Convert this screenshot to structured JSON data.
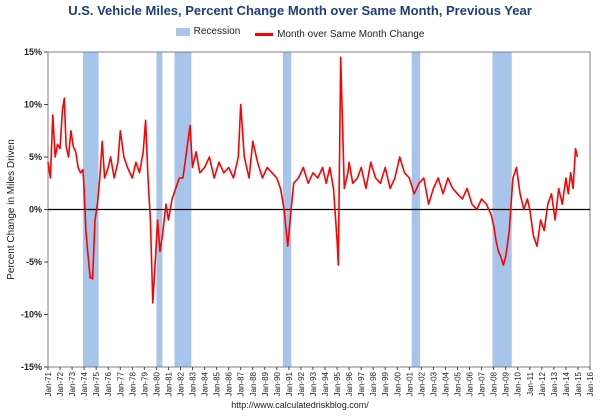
{
  "chart_data": {
    "type": "line",
    "title": "U.S. Vehicle Miles,  Percent Change Month over Same Month, Previous Year",
    "ylabel": "Percent Change in Miles Driven",
    "xlabel": "",
    "ylim": [
      -15,
      15
    ],
    "y_ticks": [
      "15%",
      "10%",
      "5%",
      "0%",
      "-5%",
      "-10%",
      "-15%"
    ],
    "y_tick_values": [
      15,
      10,
      5,
      0,
      -5,
      -10,
      -15
    ],
    "x_tick_labels": [
      "Jan-71",
      "Jan-72",
      "Jan-73",
      "Jan-74",
      "Jan-75",
      "Jan-76",
      "Jan-77",
      "Jan-78",
      "Jan-79",
      "Jan-80",
      "Jan-81",
      "Jan-82",
      "Jan-83",
      "Jan-84",
      "Jan-85",
      "Jan-86",
      "Jan-87",
      "Jan-88",
      "Jan-89",
      "Jan-90",
      "Jan-91",
      "Jan-92",
      "Jan-93",
      "Jan-94",
      "Jan-95",
      "Jan-96",
      "Jan-97",
      "Jan-98",
      "Jan-99",
      "Jan-00",
      "Jan-01",
      "Jan-02",
      "Jan-03",
      "Jan-04",
      "Jan-05",
      "Jan-06",
      "Jan-07",
      "Jan-08",
      "Jan-09",
      "Jan-10",
      "Jan-11",
      "Jan-12",
      "Jan-13",
      "Jan-14",
      "Jan-15",
      "Jan-16"
    ],
    "xlim": [
      1971.0,
      2016.0
    ],
    "legend": [
      "Recession",
      "Month over Same Month Change"
    ],
    "legend_position": "top-center",
    "grid": false,
    "recessions": [
      [
        1973.9,
        1975.2
      ],
      [
        1980.0,
        1980.5
      ],
      [
        1981.5,
        1982.9
      ],
      [
        1990.5,
        1991.2
      ],
      [
        2001.2,
        2001.9
      ],
      [
        2007.9,
        2009.5
      ]
    ],
    "series": [
      {
        "name": "Month over Same Month Change",
        "color": "#ff0000",
        "x": [
          1971.0,
          1971.2,
          1971.4,
          1971.6,
          1971.8,
          1972.0,
          1972.2,
          1972.35,
          1972.5,
          1972.7,
          1972.9,
          1973.1,
          1973.3,
          1973.5,
          1973.7,
          1973.9,
          1974.0,
          1974.15,
          1974.3,
          1974.5,
          1974.7,
          1974.9,
          1975.1,
          1975.3,
          1975.5,
          1975.7,
          1976.0,
          1976.2,
          1976.5,
          1976.8,
          1977.0,
          1977.3,
          1977.6,
          1978.0,
          1978.3,
          1978.6,
          1978.9,
          1979.1,
          1979.3,
          1979.5,
          1979.7,
          1979.9,
          1980.1,
          1980.3,
          1980.5,
          1980.8,
          1981.0,
          1981.3,
          1981.6,
          1981.9,
          1982.2,
          1982.5,
          1982.8,
          1983.0,
          1983.3,
          1983.6,
          1984.0,
          1984.4,
          1984.8,
          1985.2,
          1985.6,
          1986.0,
          1986.4,
          1986.8,
          1987.0,
          1987.3,
          1987.7,
          1988.0,
          1988.4,
          1988.8,
          1989.2,
          1989.6,
          1990.0,
          1990.3,
          1990.6,
          1990.9,
          1991.1,
          1991.4,
          1991.8,
          1992.2,
          1992.6,
          1993.0,
          1993.4,
          1993.8,
          1994.1,
          1994.4,
          1994.7,
          1995.0,
          1995.1,
          1995.3,
          1995.6,
          1995.9,
          1996.0,
          1996.3,
          1996.7,
          1997.0,
          1997.4,
          1997.8,
          1998.2,
          1998.6,
          1999.0,
          1999.4,
          1999.8,
          2000.2,
          2000.6,
          2001.0,
          2001.4,
          2001.8,
          2002.2,
          2002.6,
          2003.0,
          2003.4,
          2003.8,
          2004.2,
          2004.6,
          2005.0,
          2005.4,
          2005.8,
          2006.2,
          2006.6,
          2007.0,
          2007.4,
          2007.8,
          2008.0,
          2008.2,
          2008.4,
          2008.6,
          2008.8,
          2009.0,
          2009.3,
          2009.6,
          2009.9,
          2010.2,
          2010.5,
          2010.8,
          2011.0,
          2011.3,
          2011.6,
          2011.9,
          2012.2,
          2012.5,
          2012.8,
          2013.1,
          2013.4,
          2013.7,
          2014.0,
          2014.2,
          2014.4,
          2014.6,
          2014.8,
          2014.95
        ],
        "values": [
          4.5,
          3.0,
          9.0,
          5.0,
          6.2,
          5.8,
          9.5,
          10.6,
          6.0,
          5.0,
          7.5,
          6.0,
          5.5,
          4.0,
          3.5,
          3.8,
          2.0,
          -2.0,
          -4.0,
          -6.5,
          -6.6,
          -1.0,
          0.5,
          3.0,
          6.5,
          3.0,
          4.0,
          5.0,
          3.0,
          4.5,
          7.5,
          5.0,
          4.0,
          3.0,
          4.5,
          3.5,
          5.5,
          8.5,
          3.0,
          -1.0,
          -8.9,
          -5.0,
          -1.0,
          -4.0,
          -2.5,
          0.5,
          -1.0,
          1.0,
          2.0,
          3.0,
          3.0,
          5.5,
          8.0,
          4.0,
          5.5,
          3.5,
          4.0,
          5.0,
          3.0,
          4.5,
          3.5,
          4.0,
          3.0,
          5.0,
          10.0,
          5.0,
          3.0,
          6.5,
          4.5,
          3.0,
          4.0,
          3.5,
          3.0,
          2.0,
          0.0,
          -3.5,
          -1.0,
          2.5,
          3.0,
          4.0,
          2.5,
          3.5,
          3.0,
          4.0,
          2.5,
          4.0,
          2.0,
          -3.0,
          -5.3,
          14.5,
          2.0,
          3.5,
          4.5,
          2.5,
          3.0,
          4.0,
          2.0,
          4.5,
          3.0,
          2.5,
          4.0,
          2.0,
          3.0,
          5.0,
          3.5,
          3.0,
          1.5,
          2.5,
          3.0,
          0.5,
          2.0,
          3.0,
          1.5,
          3.0,
          2.0,
          1.5,
          1.0,
          2.0,
          0.5,
          0.0,
          1.0,
          0.5,
          -0.5,
          -1.5,
          -3.0,
          -4.0,
          -4.5,
          -5.3,
          -4.5,
          -2.0,
          3.0,
          4.0,
          1.5,
          0.0,
          1.0,
          0.0,
          -2.5,
          -3.5,
          -1.0,
          -2.0,
          0.5,
          1.5,
          -1.0,
          2.0,
          0.5,
          3.0,
          1.5,
          3.5,
          2.0,
          5.8,
          5.0
        ]
      }
    ]
  },
  "source": "http://www.calculatedriskblog.com/"
}
